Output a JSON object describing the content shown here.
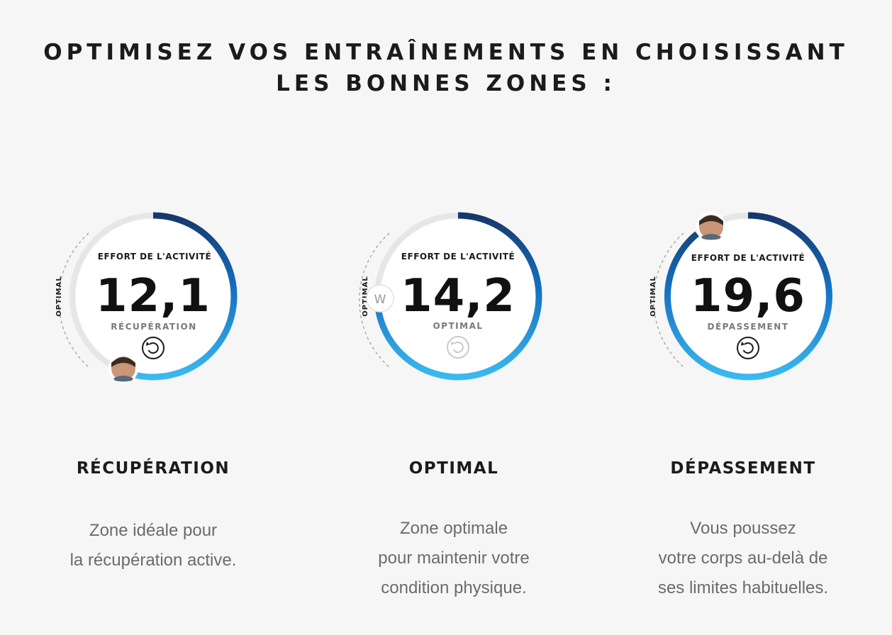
{
  "headline": {
    "line1": "OPTIMISEZ VOS ENTRAÎNEMENTS EN CHOISISSANT",
    "line2": "LES BONNES ZONES :"
  },
  "colors": {
    "ring_dark": "#17376b",
    "ring_mid": "#1470c0",
    "ring_light": "#3ab9ef",
    "track": "#e6e6e6"
  },
  "zones": [
    {
      "gauge": {
        "label": "EFFORT DE L'ACTIVITÉ",
        "value": "12,1",
        "status": "RÉCUPÉRATION",
        "side_label": "OPTIMAL",
        "marker": "avatar",
        "refresh_icon": "refresh-icon"
      },
      "title": "RÉCUPÉRATION",
      "description": [
        "Zone idéale pour",
        "la récupération active."
      ]
    },
    {
      "gauge": {
        "label": "EFFORT DE L'ACTIVITÉ",
        "value": "14,2",
        "status": "OPTIMAL",
        "side_label": "OPTIMAL",
        "marker": "W",
        "refresh_icon": "refresh-icon"
      },
      "title": "OPTIMAL",
      "description": [
        "Zone optimale",
        "pour maintenir votre",
        "condition physique."
      ]
    },
    {
      "gauge": {
        "label": "EFFORT DE L'ACTIVITÉ",
        "value": "19,6",
        "status": "DÉPASSEMENT",
        "side_label": "OPTIMAL",
        "marker": "avatar",
        "refresh_icon": "refresh-icon"
      },
      "title": "DÉPASSEMENT",
      "description": [
        "Vous poussez",
        "votre corps au-delà de",
        "ses limites habituelles."
      ]
    }
  ]
}
